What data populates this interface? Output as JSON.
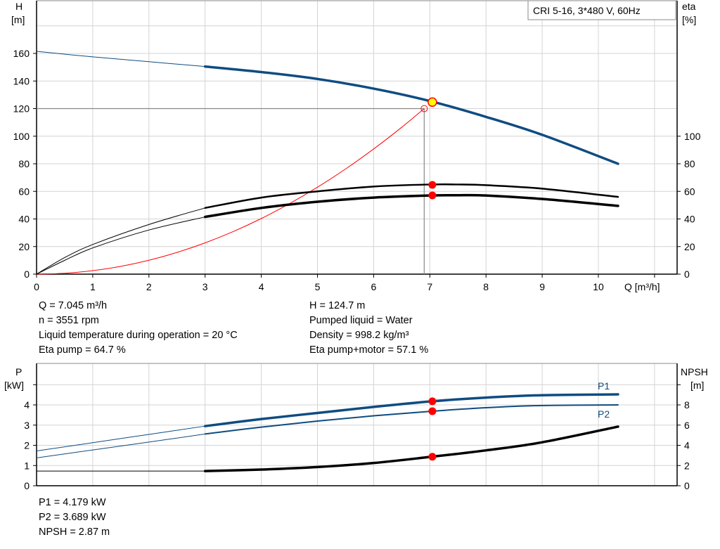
{
  "legend_box": "CRI 5-16, 3*480 V, 60Hz",
  "colors": {
    "head": "#0f4c81",
    "efficiency": "#000000",
    "system": "#ff0000",
    "power": "#0f4c81",
    "npsh": "#000000",
    "point": "#ff0000",
    "operating_point": "#ffff00"
  },
  "info_top": {
    "left": [
      "Q = 7.045 m³/h",
      "n = 3551 rpm",
      "Liquid temperature during operation = 20 °C",
      "Eta pump = 64.7 %"
    ],
    "right": [
      "H = 124.7 m",
      "Pumped liquid = Water",
      "Density = 998.2 kg/m³",
      "Eta pump+motor = 57.1 %"
    ]
  },
  "info_bottom": [
    "P1 = 4.179 kW",
    "P2 = 3.689 kW",
    "NPSH = 2.87 m"
  ],
  "chart_data": [
    {
      "type": "line",
      "ylabel": [
        "H",
        "[m]"
      ],
      "y2label": [
        "eta",
        "[%]"
      ],
      "xlabel": "Q [m³/h]",
      "xlim": [
        0,
        11.4
      ],
      "ylim": [
        0,
        180
      ],
      "y2lim": [
        0,
        180
      ],
      "xticks": [
        0,
        1,
        2,
        3,
        4,
        5,
        6,
        7,
        8,
        9,
        10
      ],
      "yticks": [
        0,
        20,
        40,
        60,
        80,
        100,
        120,
        140,
        160
      ],
      "y2ticks": [
        0,
        20,
        40,
        60,
        80,
        100
      ],
      "grid": true,
      "series": [
        {
          "key": "head",
          "axis": "left",
          "x": [
            0,
            1,
            2,
            3,
            4,
            5,
            6,
            7,
            8,
            9,
            10.35
          ],
          "y": [
            161.5,
            157.5,
            154,
            150.5,
            146.5,
            141.5,
            134.5,
            125.5,
            114,
            101,
            80
          ],
          "thin_below": 3
        },
        {
          "key": "eta_pump",
          "axis": "right",
          "x": [
            0,
            0.5,
            1,
            2,
            3,
            4,
            5,
            6,
            7,
            7.5,
            8,
            9,
            10.35
          ],
          "y": [
            0,
            12,
            21.5,
            36,
            48,
            55.5,
            60,
            63.5,
            65,
            65,
            64.5,
            62,
            56
          ],
          "thin_below": 3
        },
        {
          "key": "eta_total",
          "axis": "right",
          "x": [
            0,
            0.5,
            1,
            2,
            3,
            4,
            5,
            6,
            7,
            7.5,
            8,
            9,
            10.35
          ],
          "y": [
            0,
            10,
            19,
            32,
            41.5,
            48,
            52.5,
            55.5,
            57,
            57.2,
            57,
            54.5,
            49.5
          ],
          "thin_below": 3
        },
        {
          "key": "system",
          "axis": "left",
          "x": [
            0,
            0.5,
            1,
            1.5,
            2,
            2.5,
            3,
            3.5,
            4,
            4.5,
            5,
            5.5,
            6,
            6.5,
            6.9
          ],
          "y": [
            0,
            0.63,
            2.52,
            5.67,
            10.08,
            15.75,
            22.68,
            30.87,
            40.32,
            51.03,
            63,
            76.23,
            90.72,
            106.47,
            120
          ]
        }
      ],
      "duty_point": {
        "Q": 6.9,
        "H": 120
      },
      "operating_point": {
        "Q": 7.045,
        "H": 124.7,
        "eta_pump": 64.7,
        "eta_total": 57.1
      }
    },
    {
      "type": "line",
      "ylabel": [
        "P",
        "[kW]"
      ],
      "y2label": [
        "NPSH",
        "[m]"
      ],
      "xlim": [
        0,
        11.4
      ],
      "ylim": [
        0,
        6
      ],
      "y2lim": [
        0,
        12
      ],
      "yticks": [
        0,
        1,
        2,
        3,
        4
      ],
      "y2ticks": [
        0,
        2,
        4,
        6,
        8
      ],
      "grid": true,
      "series": [
        {
          "key": "P1",
          "name": "P1",
          "axis": "left",
          "x": [
            0,
            1,
            2,
            3,
            4,
            5,
            6,
            7,
            8,
            9,
            10.35
          ],
          "y": [
            1.72,
            2.13,
            2.54,
            2.95,
            3.3,
            3.6,
            3.9,
            4.17,
            4.36,
            4.48,
            4.52
          ],
          "thin_below": 3
        },
        {
          "key": "P2",
          "name": "P2",
          "axis": "left",
          "x": [
            0,
            1,
            2,
            3,
            4,
            5,
            6,
            7,
            8,
            9,
            10.35
          ],
          "y": [
            1.38,
            1.77,
            2.16,
            2.56,
            2.9,
            3.2,
            3.46,
            3.68,
            3.86,
            3.97,
            4.0
          ],
          "thin_below": 3
        },
        {
          "key": "NPSH",
          "axis": "right",
          "x": [
            0,
            1,
            2,
            3,
            4,
            5,
            6,
            7,
            8,
            9,
            10.35
          ],
          "y": [
            1.45,
            1.45,
            1.45,
            1.45,
            1.6,
            1.85,
            2.25,
            2.85,
            3.5,
            4.3,
            5.85
          ],
          "thin_below": 3
        }
      ],
      "operating_point": {
        "Q": 7.045,
        "P1": 4.179,
        "P2": 3.689,
        "NPSH": 2.87
      }
    }
  ]
}
